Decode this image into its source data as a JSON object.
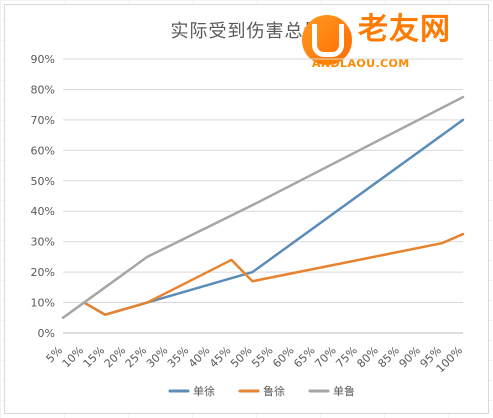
{
  "chart_data": {
    "type": "line",
    "title": "实际受到伤害总量",
    "x": [
      "5%",
      "10%",
      "15%",
      "20%",
      "25%",
      "30%",
      "35%",
      "40%",
      "45%",
      "50%",
      "55%",
      "60%",
      "65%",
      "70%",
      "75%",
      "80%",
      "85%",
      "90%",
      "95%",
      "100%"
    ],
    "y_ticks": [
      "0%",
      "10%",
      "20%",
      "30%",
      "40%",
      "50%",
      "60%",
      "70%",
      "80%",
      "90%"
    ],
    "ylim": [
      0,
      90
    ],
    "grid": true,
    "legend_position": "bottom",
    "series": [
      {
        "name": "单徐",
        "color": "#5b8db8",
        "values": [
          null,
          10,
          6,
          null,
          10,
          null,
          null,
          null,
          null,
          20,
          null,
          null,
          null,
          null,
          null,
          null,
          null,
          null,
          null,
          70
        ],
        "points": [
          [
            10,
            10
          ],
          [
            15,
            6
          ],
          [
            25,
            10
          ],
          [
            50,
            20
          ],
          [
            100,
            70
          ]
        ]
      },
      {
        "name": "鲁徐",
        "color": "#e6832f",
        "values": [
          null,
          10,
          6,
          null,
          10,
          null,
          null,
          null,
          24,
          17,
          null,
          null,
          null,
          null,
          null,
          null,
          null,
          null,
          29.5,
          32.5
        ],
        "points": [
          [
            10,
            10
          ],
          [
            15,
            6
          ],
          [
            25,
            10
          ],
          [
            45,
            24
          ],
          [
            50,
            17
          ],
          [
            95,
            29.5
          ],
          [
            100,
            32.5
          ]
        ]
      },
      {
        "name": "单鲁",
        "color": "#a6a6a6",
        "values": [
          5,
          10,
          null,
          null,
          25,
          null,
          null,
          null,
          null,
          42,
          null,
          null,
          null,
          null,
          null,
          null,
          null,
          null,
          null,
          77.5
        ],
        "points": [
          [
            5,
            5
          ],
          [
            10,
            10
          ],
          [
            25,
            25
          ],
          [
            50,
            42
          ],
          [
            100,
            77.5
          ]
        ]
      }
    ]
  },
  "watermark": {
    "brand_text": "老友网",
    "site_text": "ANDLAOU.COM"
  },
  "colors": {
    "title": "#595959",
    "grid": "#d9d9d9",
    "axis_text": "#595959",
    "watermark_orange": "#ff7a00"
  }
}
